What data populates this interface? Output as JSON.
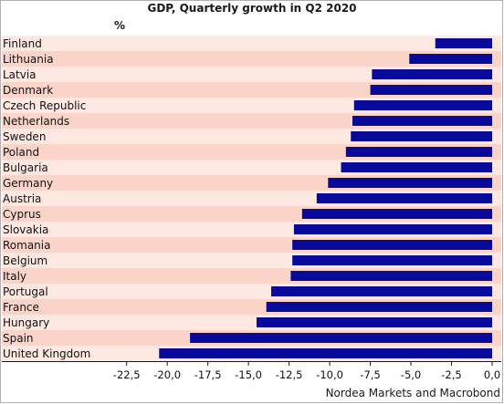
{
  "chart_data": {
    "type": "bar",
    "orientation": "horizontal",
    "title": "GDP, Quarterly growth in Q2 2020",
    "unit_label": "%",
    "source": "Nordea Markets and Macrobond",
    "categories": [
      "Finland",
      "Lithuania",
      "Latvia",
      "Denmark",
      "Czech Republic",
      "Netherlands",
      "Sweden",
      "Poland",
      "Bulgaria",
      "Germany",
      "Austria",
      "Cyprus",
      "Slovakia",
      "Romania",
      "Belgium",
      "Italy",
      "Portugal",
      "France",
      "Hungary",
      "Spain",
      "United Kingdom"
    ],
    "values": [
      -3.5,
      -5.1,
      -7.4,
      -7.5,
      -8.5,
      -8.6,
      -8.7,
      -9.0,
      -9.3,
      -10.1,
      -10.8,
      -11.7,
      -12.2,
      -12.3,
      -12.3,
      -12.4,
      -13.6,
      -13.9,
      -14.5,
      -18.6,
      -20.5
    ],
    "xlim": [
      -24,
      0
    ],
    "xticks": [
      -22.5,
      -20.0,
      -17.5,
      -15.0,
      -12.5,
      -10.0,
      -7.5,
      -5.0,
      -2.5,
      0.0
    ],
    "xtick_labels": [
      "-22,5",
      "-20,0",
      "-17,5",
      "-15,0",
      "-12,5",
      "-10,0",
      "-7,5",
      "-5,0",
      "-2,5",
      "0,0"
    ],
    "colors": {
      "bar": "#0a0a9a",
      "band_light": "#fde8e2",
      "band_dark": "#fad4c8",
      "axis": "#1a1a1a"
    }
  }
}
